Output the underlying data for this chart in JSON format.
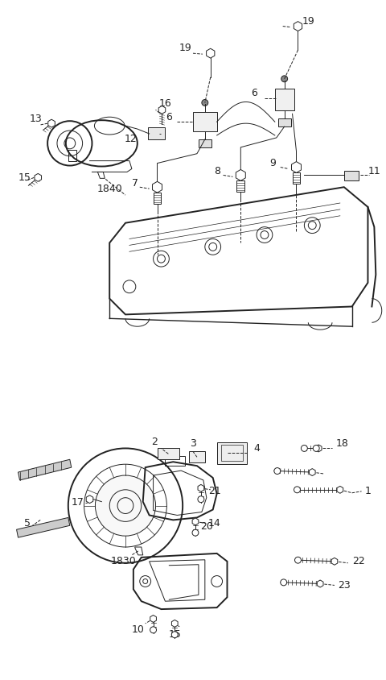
{
  "bg_color": "#ffffff",
  "line_color": "#222222",
  "fig_width": 4.8,
  "fig_height": 8.44,
  "dpi": 100
}
